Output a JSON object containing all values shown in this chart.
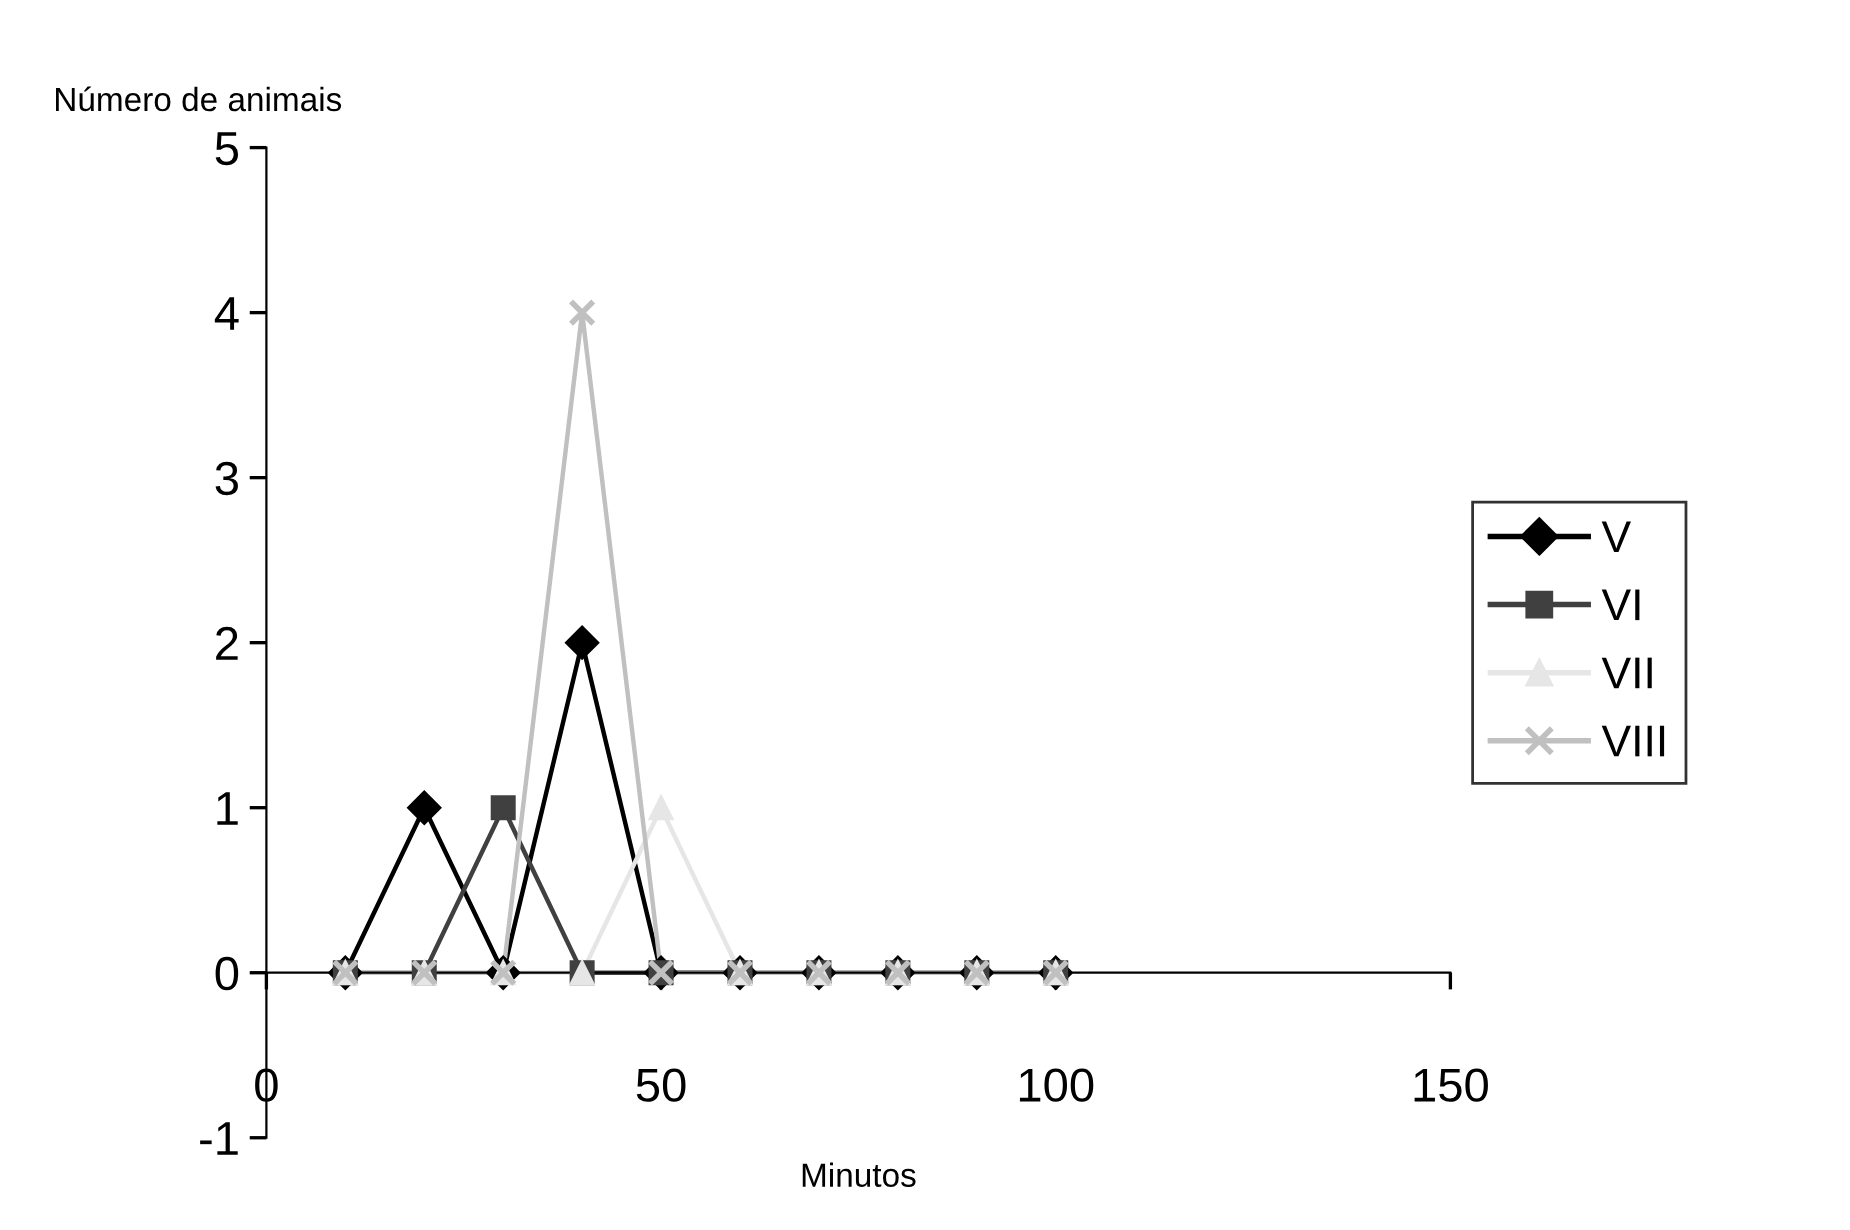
{
  "chart_data": {
    "type": "line",
    "xlabel": "Minutos",
    "ylabel": "Número de animais",
    "x": [
      10,
      20,
      30,
      40,
      50,
      60,
      70,
      80,
      90,
      100
    ],
    "series": [
      {
        "name": "V",
        "color": "#000000",
        "marker": "diamond",
        "values": [
          0,
          1,
          0,
          2,
          0,
          0,
          0,
          0,
          0,
          0
        ]
      },
      {
        "name": "VI",
        "color": "#404040",
        "marker": "square",
        "values": [
          0,
          0,
          1,
          0,
          0,
          0,
          0,
          0,
          0,
          0
        ]
      },
      {
        "name": "VII",
        "color": "#e6e6e6",
        "marker": "triangle",
        "values": [
          0,
          0,
          0,
          0,
          1,
          0,
          0,
          0,
          0,
          0
        ]
      },
      {
        "name": "VIII",
        "color": "#c0c0c0",
        "marker": "cross",
        "values": [
          0,
          0,
          0,
          4,
          0,
          0,
          0,
          0,
          0,
          0
        ]
      }
    ],
    "xlim": [
      0,
      150
    ],
    "ylim": [
      -1,
      5
    ],
    "xticks": [
      0,
      50,
      100,
      150
    ],
    "yticks": [
      -1,
      0,
      1,
      2,
      3,
      4,
      5
    ],
    "grid": false,
    "legend": "right",
    "line_style": "solid"
  }
}
